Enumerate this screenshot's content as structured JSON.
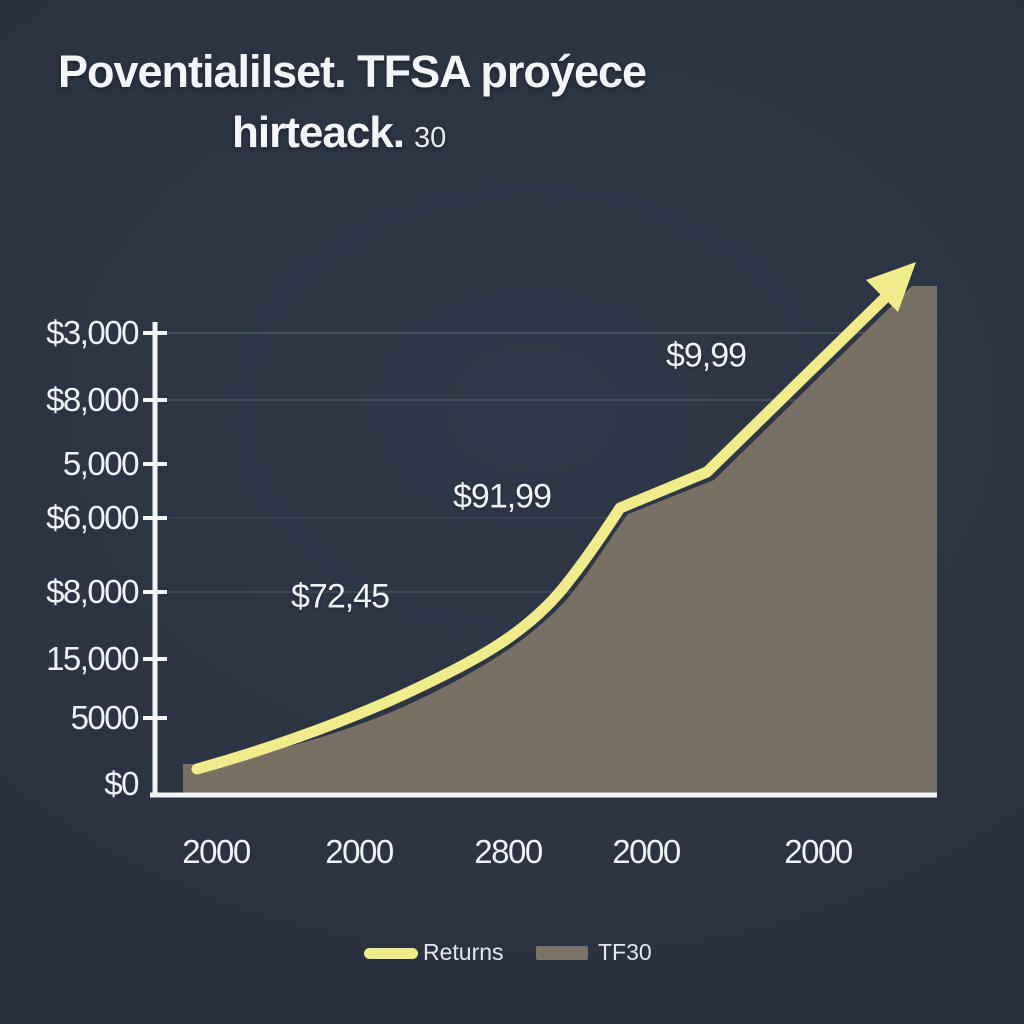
{
  "title": {
    "line1": "Poventialilset. TFSA proýece",
    "line2_main": "hirteack.",
    "line2_suffix": "30"
  },
  "colors": {
    "background": "#2b3342",
    "returns_line": "#f1ec8b",
    "tf30_area": "#7b7365",
    "axis": "#f2f4f6",
    "grid": "#9fb0c2",
    "label_text": "#eef1f5"
  },
  "y_axis": {
    "tick_labels": [
      "$3,000",
      "$8,000",
      "5,000",
      "$6,000",
      "$8,000",
      "15,000",
      "5000",
      "$0"
    ]
  },
  "x_axis": {
    "tick_labels": [
      "2000",
      "2000",
      "2800",
      "2000",
      "2000"
    ]
  },
  "annotations": [
    {
      "text": "$72,45"
    },
    {
      "text": "$91,99"
    },
    {
      "text": "$9,99"
    }
  ],
  "legend": [
    {
      "label": "Returns",
      "swatch": "line",
      "color": "#f1ec8b"
    },
    {
      "label": "TF30",
      "swatch": "area",
      "color": "#7b7365"
    }
  ],
  "chart_data": {
    "type": "area",
    "title": "Poventialilset. TFSA proýece hirteack. 30",
    "x": [
      "2000",
      "2000",
      "2800",
      "2000",
      "2000"
    ],
    "series": [
      {
        "name": "Returns",
        "style": "line",
        "color": "#f1ec8b",
        "values_pct_of_plot_height": [
          6,
          16,
          32,
          57,
          81
        ],
        "end_value_pct": 100
      },
      {
        "name": "TF30",
        "style": "area",
        "color": "#7b7365",
        "values_pct_of_plot_height": [
          5,
          14,
          30,
          55,
          79
        ]
      }
    ],
    "y_tick_labels": [
      "$3,000",
      "$8,000",
      "5,000",
      "$6,000",
      "$8,000",
      "15,000",
      "5000",
      "$0"
    ],
    "point_labels": [
      "$72,45",
      "$91,99",
      "$9,99"
    ],
    "legend_entries": [
      "Returns",
      "TF30"
    ],
    "legend_position": "bottom",
    "grid": "faint-horizontal",
    "ylabel": "",
    "xlabel": ""
  }
}
